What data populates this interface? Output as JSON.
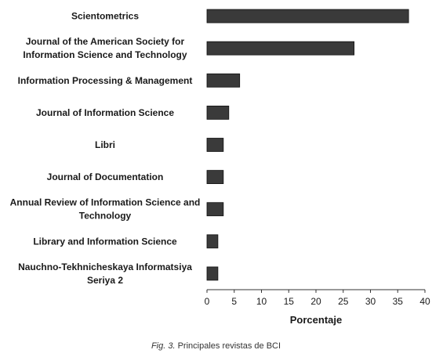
{
  "chart_data": {
    "type": "bar",
    "orientation": "horizontal",
    "categories": [
      [
        "Scientometrics"
      ],
      [
        "Journal of the American Society for",
        "Information Science and Technology"
      ],
      [
        "Information Processing & Management"
      ],
      [
        "Journal of Information Science"
      ],
      [
        "Libri"
      ],
      [
        "Journal of Documentation"
      ],
      [
        "Annual Review of Information Science and",
        "Technology"
      ],
      [
        "Library and Information Science"
      ],
      [
        "Nauchno-Tekhnicheskaya Informatsiya",
        "Seriya 2"
      ]
    ],
    "values": [
      37,
      27,
      6,
      4,
      3,
      3,
      3,
      2,
      2
    ],
    "xlabel": "Porcentaje",
    "xlim": [
      0,
      40
    ],
    "xticks": [
      "0",
      "5",
      "10",
      "15",
      "20",
      "25",
      "30",
      "35",
      "40"
    ],
    "grid": false,
    "bar_color": "#3a3a3a"
  },
  "caption": {
    "figure_label": "Fig. 3.",
    "text": " Principales revistas de BCI"
  }
}
